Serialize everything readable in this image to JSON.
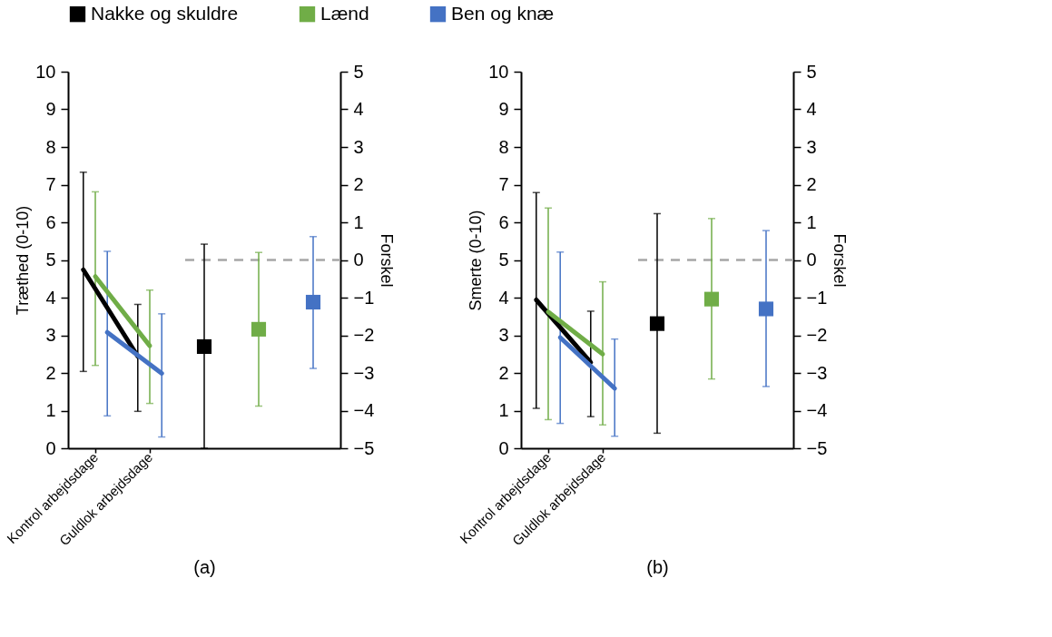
{
  "chart_data": [
    {
      "type": "line",
      "xlabel": "(a)",
      "ylabel": "Træthed (0-10)",
      "y2label": "Forskel",
      "categories": [
        "Kontrol arbejdsdage",
        "Guldlok arbejdsdage",
        null,
        null,
        null
      ],
      "ylim": [
        0,
        10
      ],
      "yticks": [
        0,
        1,
        2,
        3,
        4,
        5,
        6,
        7,
        8,
        9,
        10
      ],
      "y2lim": [
        -5,
        5
      ],
      "y2ticks": [
        -5,
        -4,
        -3,
        -2,
        -1,
        0,
        1,
        2,
        3,
        4,
        5
      ],
      "grid": false,
      "legend": "top",
      "marker": "none",
      "ref_lines": [
        {
          "axis": "y2",
          "value": 0,
          "color": "#a6a6a6",
          "line_style": "dashed"
        }
      ],
      "series": [
        {
          "name": "Nakke og skuldre",
          "color": "#000000",
          "values": [
            4.74,
            2.44,
            null,
            null,
            null
          ],
          "errors": [
            [
              2.04,
              7.33
            ],
            [
              0.98,
              3.82
            ],
            null,
            null,
            null
          ]
        },
        {
          "name": "Lænd",
          "color": "#70ad47",
          "values": [
            4.56,
            2.72,
            null,
            null,
            null
          ],
          "errors": [
            [
              2.2,
              6.81
            ],
            [
              1.19,
              4.2
            ],
            null,
            null,
            null
          ]
        },
        {
          "name": "Ben og knæ",
          "color": "#4472c4",
          "values": [
            3.08,
            1.99,
            null,
            null,
            null
          ],
          "errors": [
            [
              0.86,
              5.23
            ],
            [
              0.3,
              3.57
            ],
            null,
            null,
            null
          ]
        },
        {
          "type": "scatter",
          "axis": "y2",
          "marker": "square",
          "color": "#000000",
          "values": [
            null,
            null,
            -2.3,
            null,
            null
          ],
          "errors": [
            null,
            null,
            [
              -5,
              0.42
            ],
            null,
            null
          ]
        },
        {
          "type": "scatter",
          "axis": "y2",
          "marker": "square",
          "color": "#70ad47",
          "values": [
            null,
            null,
            null,
            -1.84,
            null
          ],
          "errors": [
            null,
            null,
            null,
            [
              -3.88,
              0.2
            ],
            null
          ]
        },
        {
          "type": "scatter",
          "axis": "y2",
          "marker": "square",
          "color": "#4472c4",
          "values": [
            null,
            null,
            null,
            null,
            -1.12
          ],
          "errors": [
            null,
            null,
            null,
            null,
            [
              -2.88,
              0.62
            ]
          ]
        }
      ]
    },
    {
      "type": "line",
      "xlabel": "(b)",
      "ylabel": "Smerte (0-10)",
      "y2label": "Forskel",
      "categories": [
        "Kontrol arbejdsdage",
        "Guldlok arbejdsdage",
        null,
        null,
        null
      ],
      "ylim": [
        0,
        10
      ],
      "yticks": [
        0,
        1,
        2,
        3,
        4,
        5,
        6,
        7,
        8,
        9,
        10
      ],
      "y2lim": [
        -5,
        5
      ],
      "y2ticks": [
        -5,
        -4,
        -3,
        -2,
        -1,
        0,
        1,
        2,
        3,
        4,
        5
      ],
      "grid": false,
      "marker": "none",
      "ref_lines": [
        {
          "axis": "y2",
          "value": 0,
          "color": "#a6a6a6",
          "line_style": "dashed"
        }
      ],
      "series": [
        {
          "color": "#000000",
          "values": [
            3.94,
            2.28,
            null,
            null,
            null
          ],
          "errors": [
            [
              1.06,
              6.79
            ],
            [
              0.84,
              3.64
            ],
            null,
            null,
            null
          ]
        },
        {
          "color": "#70ad47",
          "values": [
            3.62,
            2.5,
            null,
            null,
            null
          ],
          "errors": [
            [
              0.76,
              6.38
            ],
            [
              0.62,
              4.42
            ],
            null,
            null,
            null
          ]
        },
        {
          "color": "#4472c4",
          "values": [
            2.94,
            1.59,
            null,
            null,
            null
          ],
          "errors": [
            [
              0.66,
              5.21
            ],
            [
              0.32,
              2.9
            ],
            null,
            null,
            null
          ]
        },
        {
          "type": "scatter",
          "axis": "y2",
          "marker": "square",
          "color": "#000000",
          "values": [
            null,
            null,
            -1.69,
            null,
            null
          ],
          "errors": [
            null,
            null,
            [
              -4.6,
              1.23
            ],
            null,
            null
          ]
        },
        {
          "type": "scatter",
          "axis": "y2",
          "marker": "square",
          "color": "#70ad47",
          "values": [
            null,
            null,
            null,
            -1.04,
            null
          ],
          "errors": [
            null,
            null,
            null,
            [
              -3.16,
              1.1
            ],
            null
          ]
        },
        {
          "type": "scatter",
          "axis": "y2",
          "marker": "square",
          "color": "#4472c4",
          "values": [
            null,
            null,
            null,
            null,
            -1.3
          ],
          "errors": [
            null,
            null,
            null,
            null,
            [
              -3.36,
              0.78
            ]
          ]
        }
      ]
    }
  ]
}
